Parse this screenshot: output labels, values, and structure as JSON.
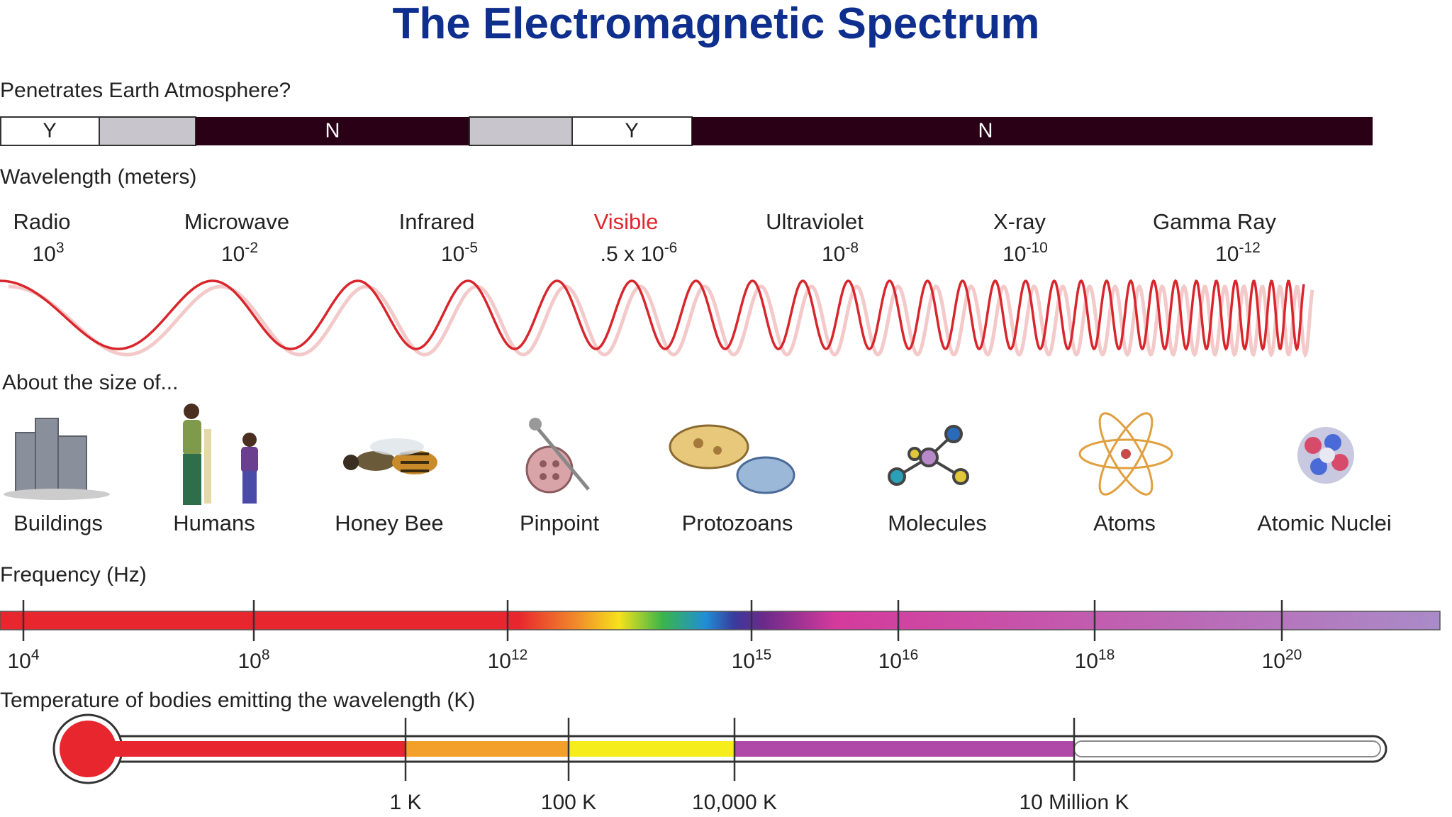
{
  "title": "The Electromagnetic Spectrum",
  "atmosphere": {
    "label": "Penetrates Earth Atmosphere?",
    "segments": [
      "Y",
      "N",
      "Y",
      "N"
    ]
  },
  "wavelength": {
    "label": "Wavelength (meters)",
    "bands": [
      {
        "name": "Radio",
        "base": "10",
        "exp": "3"
      },
      {
        "name": "Microwave",
        "base": "10",
        "exp": "-2"
      },
      {
        "name": "Infrared",
        "base": "10",
        "exp": "-5"
      },
      {
        "name": "Visible",
        "base": ".5 x 10",
        "exp": "-6"
      },
      {
        "name": "Ultraviolet",
        "base": "10",
        "exp": "-8"
      },
      {
        "name": "X-ray",
        "base": "10",
        "exp": "-10"
      },
      {
        "name": "Gamma Ray",
        "base": "10",
        "exp": "-12"
      }
    ]
  },
  "size": {
    "label": "About the size of...",
    "items": [
      "Buildings",
      "Humans",
      "Honey Bee",
      "Pinpoint",
      "Protozoans",
      "Molecules",
      "Atoms",
      "Atomic Nuclei"
    ]
  },
  "frequency": {
    "label": "Frequency (Hz)",
    "ticks": [
      {
        "base": "10",
        "exp": "4"
      },
      {
        "base": "10",
        "exp": "8"
      },
      {
        "base": "10",
        "exp": "12"
      },
      {
        "base": "10",
        "exp": "15"
      },
      {
        "base": "10",
        "exp": "16"
      },
      {
        "base": "10",
        "exp": "18"
      },
      {
        "base": "10",
        "exp": "20"
      }
    ]
  },
  "temperature": {
    "label": "Temperature of bodies emitting the wavelength (K)",
    "ticks": [
      "1 K",
      "100 K",
      "10,000 K",
      "10 Million K"
    ]
  }
}
